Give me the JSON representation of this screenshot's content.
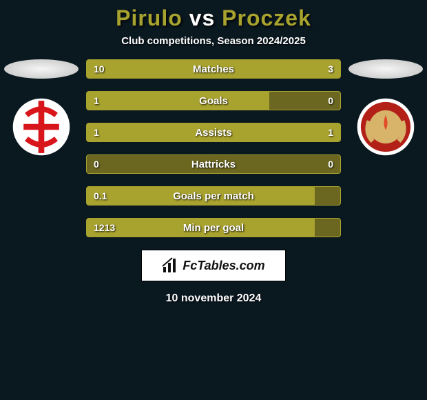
{
  "header": {
    "title_left": "Pirulo",
    "title_vs": "vs",
    "title_right": "Proczek",
    "title_color_left": "#a8a22e",
    "title_color_vs": "#ffffff",
    "title_color_right": "#a8a22e",
    "subtitle": "Club competitions, Season 2024/2025"
  },
  "players": {
    "left": {
      "club_logo_bg": "#ffffff",
      "club_logo_fg": "#d8151b",
      "club_logo_text": "ŁKS"
    },
    "right": {
      "club_logo_bg": "#ffffff",
      "club_logo_fg": "#b22018",
      "club_logo_text": ""
    }
  },
  "chart": {
    "bar_border_color": "#a8a22e",
    "left_fill_color": "#a8a22e",
    "right_fill_color": "#a8a22e",
    "neutral_fill_color": "#6b6720",
    "text_color": "#ffffff",
    "rows": [
      {
        "label": "Matches",
        "left_value": "10",
        "right_value": "3",
        "left_pct": 70,
        "right_pct": 30
      },
      {
        "label": "Goals",
        "left_value": "1",
        "right_value": "0",
        "left_pct": 72,
        "right_pct": 0
      },
      {
        "label": "Assists",
        "left_value": "1",
        "right_value": "1",
        "left_pct": 50,
        "right_pct": 50
      },
      {
        "label": "Hattricks",
        "left_value": "0",
        "right_value": "0",
        "left_pct": 0,
        "right_pct": 0
      },
      {
        "label": "Goals per match",
        "left_value": "0.1",
        "right_value": "",
        "left_pct": 90,
        "right_pct": 0
      },
      {
        "label": "Min per goal",
        "left_value": "1213",
        "right_value": "",
        "left_pct": 90,
        "right_pct": 0
      }
    ]
  },
  "branding": {
    "text": "FcTables.com"
  },
  "footer": {
    "date": "10 november 2024"
  },
  "background_color": "#0a1820"
}
